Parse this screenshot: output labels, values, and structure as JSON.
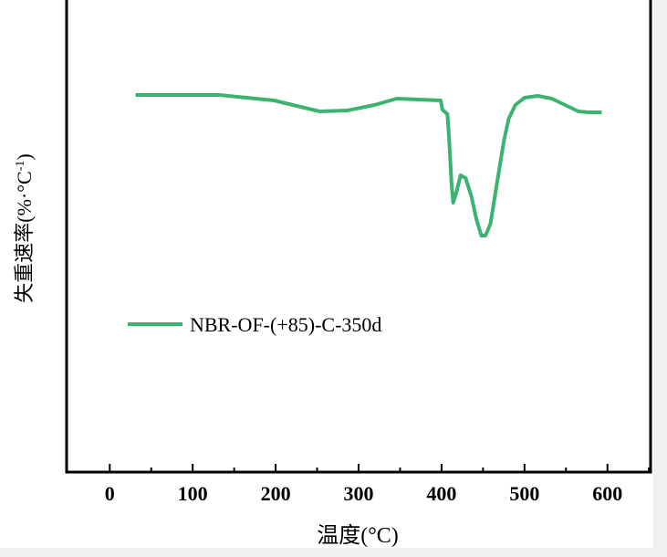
{
  "chart_data": {
    "type": "line",
    "title": "",
    "xlabel": "温度(°C)",
    "ylabel": "失重速率(%·°C",
    "ylabel_sup": "-1",
    "ylabel_close": ")",
    "xlim": [
      -52,
      652
    ],
    "ylim": [
      -4.13,
      1.04
    ],
    "xticks": [
      0,
      100,
      200,
      300,
      400,
      500,
      600
    ],
    "yticks": [],
    "grid": false,
    "legend_position": "center-left",
    "series": [
      {
        "name": "NBR-OF-(+85)-C-350d",
        "color": "#3cb371",
        "x": [
          31,
          132,
          198,
          253,
          286,
          319,
          346,
          399,
          401,
          407,
          409,
          412,
          414,
          418,
          423,
          429,
          436,
          442,
          448,
          453,
          459,
          467,
          475,
          481,
          489,
          500,
          516,
          533,
          549,
          565,
          577,
          593
        ],
        "y": [
          0,
          0,
          -0.06,
          -0.18,
          -0.17,
          -0.11,
          -0.04,
          -0.06,
          -0.16,
          -0.21,
          -0.46,
          -0.96,
          -1.18,
          -1.06,
          -0.88,
          -0.91,
          -1.11,
          -1.36,
          -1.54,
          -1.54,
          -1.41,
          -0.96,
          -0.51,
          -0.26,
          -0.11,
          -0.03,
          -0.01,
          -0.04,
          -0.11,
          -0.18,
          -0.19,
          -0.19
        ]
      }
    ]
  }
}
